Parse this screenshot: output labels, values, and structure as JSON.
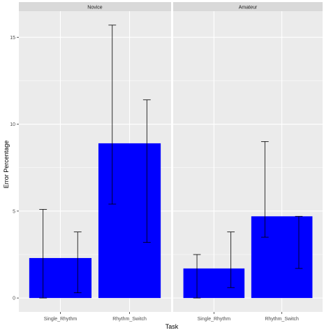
{
  "chart_data": {
    "type": "bar",
    "xlabel": "Task",
    "ylabel": "Error Percentage",
    "ylim": [
      -0.8,
      16.5
    ],
    "yticks": [
      0,
      5,
      10,
      15
    ],
    "grid": true,
    "categories": [
      "Single_Rhythm",
      "Rhythm_Switch"
    ],
    "colors": {
      "bar": "#0000ff",
      "panel_bg": "#ebebeb",
      "strip_bg": "#d9d9d9",
      "grid": "#ffffff",
      "errorbar": "#000000"
    },
    "panels": [
      {
        "name": "Novice",
        "values": [
          2.3,
          8.9
        ],
        "errorbars": [
          {
            "category": "Single_Rhythm",
            "low": 0.0,
            "high": 5.1
          },
          {
            "category": "Single_Rhythm",
            "low": 0.3,
            "high": 3.8
          },
          {
            "category": "Rhythm_Switch",
            "low": 5.4,
            "high": 15.7
          },
          {
            "category": "Rhythm_Switch",
            "low": 3.2,
            "high": 11.4
          }
        ]
      },
      {
        "name": "Amateur",
        "values": [
          1.7,
          4.7
        ],
        "errorbars": [
          {
            "category": "Single_Rhythm",
            "low": 0.0,
            "high": 2.5
          },
          {
            "category": "Single_Rhythm",
            "low": 0.6,
            "high": 3.8
          },
          {
            "category": "Rhythm_Switch",
            "low": 3.5,
            "high": 9.0
          },
          {
            "category": "Rhythm_Switch",
            "low": 1.7,
            "high": 4.7
          }
        ]
      }
    ]
  }
}
